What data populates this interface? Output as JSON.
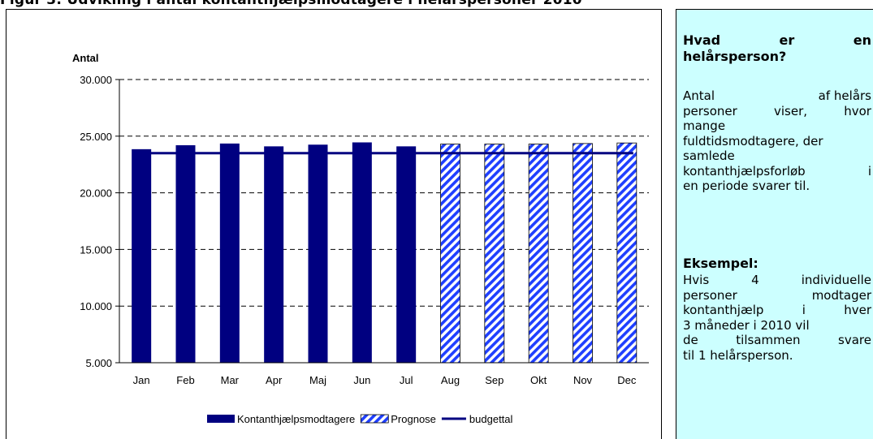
{
  "header_text": "Figur 3: Udvikling i antal kontanthjælpsmodtagere i helårspersoner 2010",
  "chart_data": {
    "type": "bar",
    "ylabel": "Antal",
    "ylim": [
      5000,
      30000
    ],
    "yticks": [
      5000,
      10000,
      15000,
      20000,
      25000,
      30000
    ],
    "ytick_labels": [
      "5.000",
      "10.000",
      "15.000",
      "20.000",
      "25.000",
      "30.000"
    ],
    "categories": [
      "Jan",
      "Feb",
      "Mar",
      "Apr",
      "Maj",
      "Jun",
      "Jul",
      "Aug",
      "Sep",
      "Okt",
      "Nov",
      "Dec"
    ],
    "grid": "horizontal dashed",
    "legend_position": "bottom",
    "series": [
      {
        "name": "Kontanthjælpsmodtagere",
        "kind": "bar",
        "color": "#000080",
        "values": [
          23850,
          24200,
          24350,
          24100,
          24250,
          24450,
          24100,
          null,
          null,
          null,
          null,
          null
        ]
      },
      {
        "name": "Prognose",
        "kind": "bar-hatched",
        "color": "#1f3fff",
        "values": [
          null,
          null,
          null,
          null,
          null,
          null,
          null,
          24300,
          24300,
          24300,
          24350,
          24400
        ]
      },
      {
        "name": "budgettal",
        "kind": "line",
        "color": "#000080",
        "values": [
          23500,
          23500,
          23500,
          23500,
          23500,
          23500,
          23500,
          23500,
          23500,
          23500,
          23500,
          23500
        ]
      }
    ]
  },
  "info": {
    "heading_line1": [
      "Hvad",
      "er",
      "en"
    ],
    "heading_line2": "helårsperson?",
    "body_lines": [
      [
        "Antal",
        "af helårs"
      ],
      [
        "personer",
        "viser,",
        "hvor"
      ],
      [
        "mange"
      ],
      [
        "fuldtidsmodtagere, der"
      ],
      [
        "samlede"
      ],
      [
        "kontanthjælpsforløb",
        "i"
      ],
      [
        "en periode svarer til."
      ]
    ],
    "example_title": "Eksempel:",
    "example_lines": [
      [
        "Hvis",
        "4",
        "individuelle"
      ],
      [
        "personer",
        "modtager"
      ],
      [
        "kontanthjælp",
        "i",
        "hver"
      ],
      [
        "3 måneder i 2010 vil"
      ],
      [
        "de",
        "tilsammen",
        "svare"
      ],
      [
        "til 1 helårsperson."
      ]
    ]
  }
}
